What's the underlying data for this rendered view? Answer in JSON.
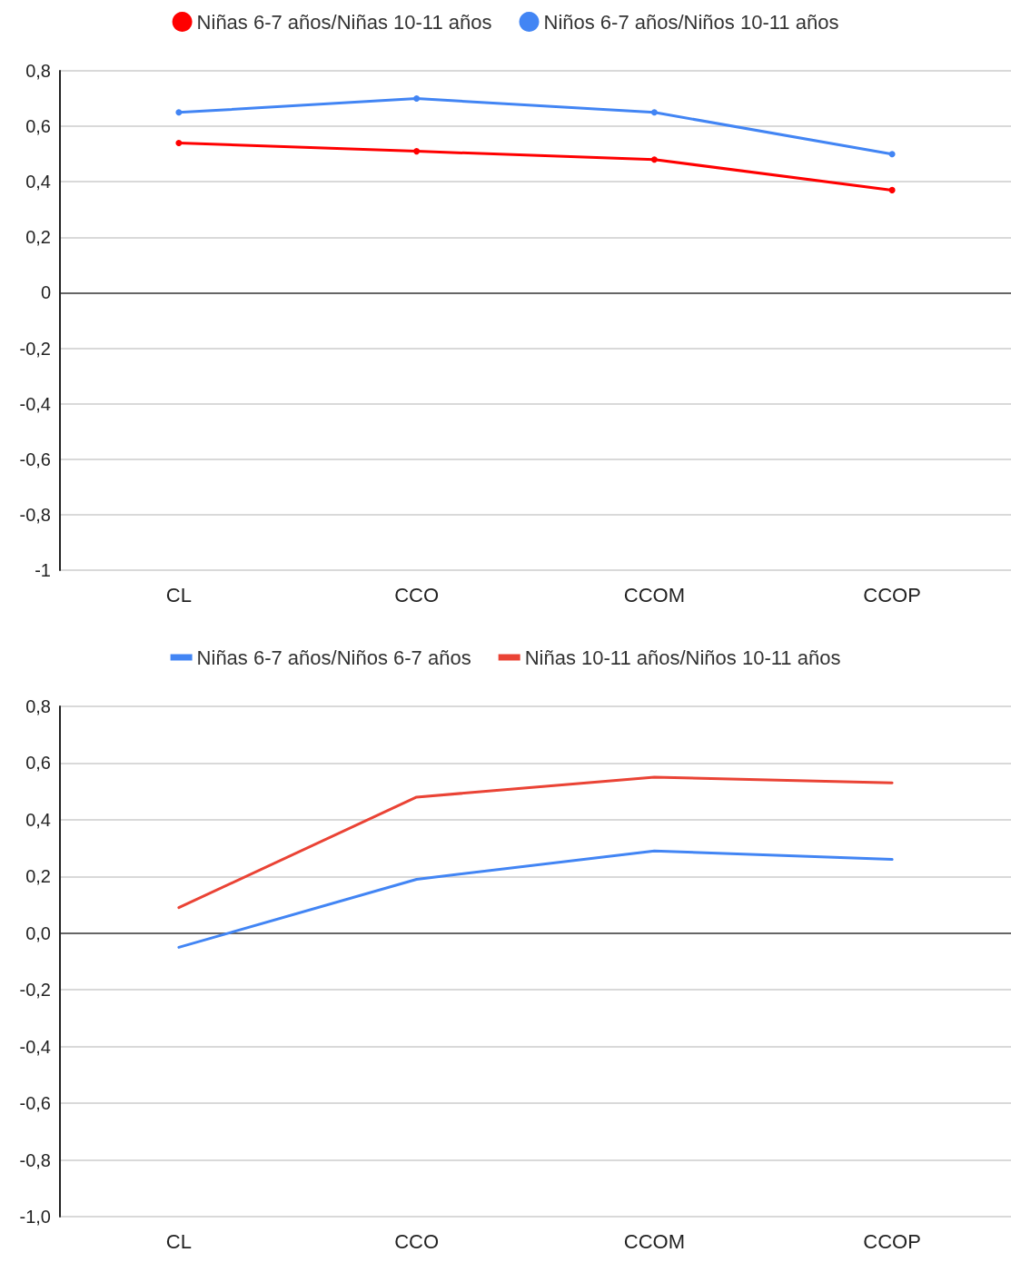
{
  "chart_data": [
    {
      "type": "line",
      "categories": [
        "CL",
        "CCO",
        "CCOM",
        "CCOP"
      ],
      "series": [
        {
          "name": "Niñas 6-7 años/Niñas 10-11 años",
          "color": "#ff0000",
          "values": [
            0.54,
            0.51,
            0.48,
            0.37
          ]
        },
        {
          "name": "Niños 6-7 años/Niños 10-11 años",
          "color": "#4285f4",
          "values": [
            0.65,
            0.7,
            0.65,
            0.5
          ]
        }
      ],
      "ylim": [
        -1,
        0.8
      ],
      "yticks": [
        {
          "value": -1,
          "label": "-1"
        },
        {
          "value": -0.8,
          "label": "-0,8"
        },
        {
          "value": -0.6,
          "label": "-0,6"
        },
        {
          "value": -0.4,
          "label": "-0,4"
        },
        {
          "value": -0.2,
          "label": "-0,2"
        },
        0,
        {
          "value": 0.2,
          "label": "0,2"
        },
        {
          "value": 0.4,
          "label": "0,4"
        },
        {
          "value": 0.6,
          "label": "0,6"
        },
        {
          "value": 0.8,
          "label": "0,8"
        }
      ],
      "grid": "y",
      "legend": "top",
      "marker": "circle",
      "line_style": "solid"
    },
    {
      "type": "line",
      "categories": [
        "CL",
        "CCO",
        "CCOM",
        "CCOP"
      ],
      "series": [
        {
          "name": "Niñas 6-7 años/Niños 6-7 años",
          "color": "#4285f4",
          "values": [
            -0.05,
            0.19,
            0.29,
            0.26
          ]
        },
        {
          "name": "Niñas 10-11 años/Niños 10-11 años",
          "color": "#ea4335",
          "values": [
            0.09,
            0.48,
            0.55,
            0.53
          ]
        }
      ],
      "ylim": [
        -1,
        0.8
      ],
      "yticks": [
        {
          "value": -1,
          "label": "-1,0"
        },
        {
          "value": -0.8,
          "label": "-0,8"
        },
        {
          "value": -0.6,
          "label": "-0,6"
        },
        {
          "value": -0.4,
          "label": "-0,4"
        },
        {
          "value": -0.2,
          "label": "-0,2"
        },
        {
          "value": 0,
          "label": "0,0"
        },
        {
          "value": 0.2,
          "label": "0,2"
        },
        {
          "value": 0.4,
          "label": "0,4"
        },
        {
          "value": 0.6,
          "label": "0,6"
        },
        {
          "value": 0.8,
          "label": "0,8"
        }
      ],
      "grid": "y",
      "legend": "top",
      "marker": "none",
      "line_style": "solid"
    }
  ]
}
